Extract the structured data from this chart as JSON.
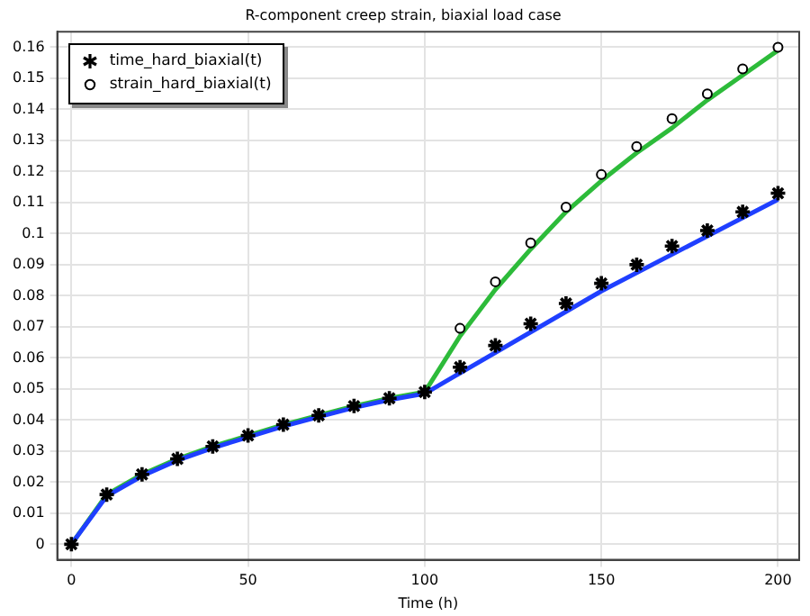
{
  "chart_data": {
    "type": "scatter",
    "title": "R-component creep strain, biaxial load case",
    "xlabel": "Time (h)",
    "xlim": [
      -4,
      206
    ],
    "xticks": [
      0,
      50,
      100,
      150,
      200
    ],
    "ylim": [
      -0.005,
      0.165
    ],
    "yticks": [
      0,
      0.01,
      0.02,
      0.03,
      0.04,
      0.05,
      0.06,
      0.07,
      0.08,
      0.09,
      0.1,
      0.11,
      0.12,
      0.13,
      0.14,
      0.15,
      0.16
    ],
    "grid": true,
    "legend": "top left",
    "series": [
      {
        "type": "line",
        "color": "#1f3fff",
        "marker": "none",
        "x": [
          0,
          10,
          20,
          30,
          40,
          50,
          60,
          70,
          80,
          90,
          100,
          150,
          200
        ],
        "values": [
          0,
          0.0155,
          0.022,
          0.027,
          0.031,
          0.0345,
          0.038,
          0.041,
          0.044,
          0.0465,
          0.0485,
          0.0815,
          0.111
        ]
      },
      {
        "type": "line",
        "color": "#2dbb3a",
        "marker": "none",
        "x": [
          0,
          10,
          20,
          30,
          40,
          50,
          60,
          70,
          80,
          90,
          100,
          110,
          120,
          130,
          140,
          150,
          160,
          170,
          180,
          190,
          200
        ],
        "values": [
          0,
          0.016,
          0.0225,
          0.0275,
          0.0315,
          0.035,
          0.0385,
          0.0415,
          0.0445,
          0.047,
          0.049,
          0.067,
          0.082,
          0.095,
          0.107,
          0.117,
          0.126,
          0.134,
          0.143,
          0.151,
          0.159
        ]
      },
      {
        "name": "time_hard_biaxial(t)",
        "color": "#000000",
        "marker": "cross",
        "x": [
          0,
          10,
          20,
          30,
          40,
          50,
          60,
          70,
          80,
          90,
          100,
          110,
          120,
          130,
          140,
          150,
          160,
          170,
          180,
          190,
          200
        ],
        "values": [
          0,
          0.016,
          0.0225,
          0.0275,
          0.0315,
          0.035,
          0.0385,
          0.0415,
          0.0445,
          0.047,
          0.049,
          0.057,
          0.064,
          0.071,
          0.0775,
          0.084,
          0.09,
          0.096,
          0.101,
          0.107,
          0.113
        ]
      },
      {
        "name": "strain_hard_biaxial(t)",
        "color": "#000000",
        "marker": "circle",
        "x": [
          110,
          120,
          130,
          140,
          150,
          160,
          170,
          180,
          190,
          200
        ],
        "values": [
          0.0695,
          0.0845,
          0.097,
          0.1085,
          0.119,
          0.128,
          0.137,
          0.145,
          0.153,
          0.16
        ]
      }
    ]
  }
}
